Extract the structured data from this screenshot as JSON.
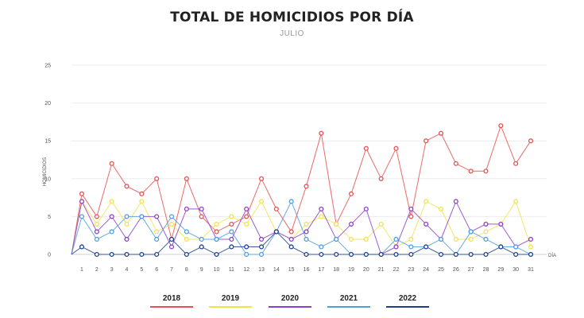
{
  "title": "TOTAL DE HOMICIDIOS POR DÍA",
  "subtitle": "JULIO",
  "chart_data": {
    "type": "line",
    "title": "TOTAL DE HOMICIDIOS POR DÍA",
    "subtitle": "JULIO",
    "xlabel": "DÍA",
    "ylabel": "HOMICIDIOS",
    "ylim": [
      0,
      25
    ],
    "yticks": [
      0,
      5,
      10,
      15,
      20,
      25
    ],
    "x": [
      1,
      2,
      3,
      4,
      5,
      6,
      7,
      8,
      9,
      10,
      11,
      12,
      13,
      14,
      15,
      16,
      17,
      18,
      19,
      20,
      21,
      22,
      23,
      24,
      25,
      26,
      27,
      28,
      29,
      30,
      31
    ],
    "grid": "horizontal",
    "legend_position": "bottom",
    "series": [
      {
        "name": "2018",
        "color": "#e8504f",
        "values": [
          8,
          5,
          12,
          9,
          8,
          10,
          2,
          10,
          5,
          3,
          4,
          5,
          10,
          6,
          3,
          9,
          16,
          4,
          8,
          14,
          10,
          14,
          5,
          15,
          16,
          12,
          11,
          11,
          17,
          12,
          15
        ]
      },
      {
        "name": "2019",
        "color": "#f2e24d",
        "values": [
          7,
          4,
          7,
          4,
          7,
          3,
          4,
          2,
          2,
          4,
          5,
          4,
          7,
          3,
          2,
          4,
          5,
          4,
          2,
          2,
          4,
          1,
          2,
          7,
          6,
          2,
          2,
          3,
          4,
          7,
          1
        ]
      },
      {
        "name": "2020",
        "color": "#8b3fc9",
        "values": [
          7,
          3,
          5,
          2,
          5,
          5,
          1,
          6,
          6,
          2,
          2,
          6,
          2,
          3,
          2,
          3,
          6,
          2,
          4,
          6,
          0,
          1,
          6,
          4,
          2,
          7,
          3,
          4,
          4,
          1,
          2
        ]
      },
      {
        "name": "2021",
        "color": "#4d9ee0",
        "values": [
          5,
          2,
          3,
          5,
          5,
          2,
          5,
          3,
          2,
          2,
          3,
          0,
          0,
          3,
          7,
          2,
          1,
          2,
          0,
          0,
          0,
          2,
          1,
          1,
          2,
          0,
          3,
          2,
          1,
          1,
          0
        ]
      },
      {
        "name": "2022",
        "color": "#1d3f8c",
        "values": [
          1,
          0,
          0,
          0,
          0,
          0,
          2,
          0,
          1,
          0,
          1,
          1,
          1,
          3,
          1,
          0,
          0,
          0,
          0,
          0,
          0,
          0,
          0,
          1,
          0,
          0,
          0,
          0,
          1,
          0,
          0
        ]
      }
    ]
  }
}
